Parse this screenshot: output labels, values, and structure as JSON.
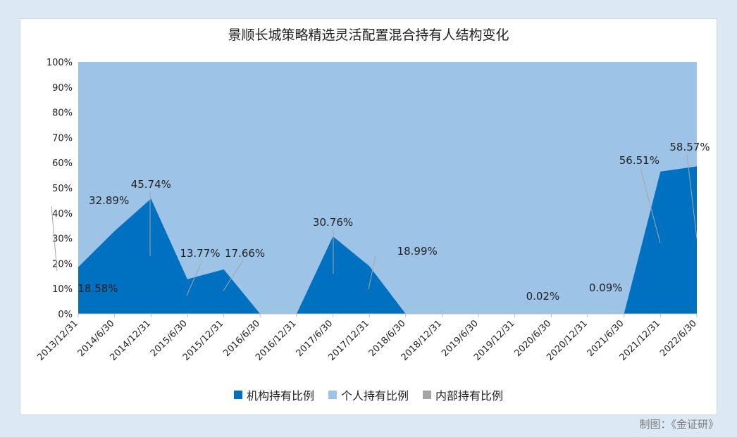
{
  "chart_data": {
    "type": "area",
    "title": "景顺长城策略精选灵活配置混合持有人结构变化",
    "categories": [
      "2013/12/31",
      "2014/6/30",
      "2014/12/31",
      "2015/6/30",
      "2015/12/31",
      "2016/6/30",
      "2016/12/31",
      "2017/6/30",
      "2017/12/31",
      "2018/6/30",
      "2018/12/31",
      "2019/6/30",
      "2019/12/31",
      "2020/6/30",
      "2020/12/31",
      "2021/6/30",
      "2021/12/31",
      "2022/6/30"
    ],
    "series": [
      {
        "name": "机构持有比例",
        "color": "#0070c0",
        "values": [
          18.58,
          32.89,
          45.74,
          13.77,
          17.66,
          0,
          0,
          30.76,
          18.99,
          0,
          0,
          0,
          0,
          0.02,
          0,
          0.09,
          56.51,
          58.57
        ]
      },
      {
        "name": "个人持有比例",
        "color": "#9dc3e6",
        "values": [
          81.42,
          67.11,
          54.26,
          86.23,
          82.34,
          100,
          100,
          69.24,
          81.01,
          100,
          100,
          100,
          100,
          99.98,
          100,
          99.91,
          43.49,
          41.43
        ]
      },
      {
        "name": "内部持有比例",
        "color": "#a5a5a5",
        "values": [
          0,
          0,
          0,
          0,
          0,
          0,
          0,
          0,
          0,
          0,
          0,
          0,
          0,
          0,
          0,
          0,
          0,
          0
        ]
      }
    ],
    "yticks": [
      "0%",
      "10%",
      "20%",
      "30%",
      "40%",
      "50%",
      "60%",
      "70%",
      "80%",
      "90%",
      "100%"
    ],
    "ylim": [
      0,
      100
    ],
    "data_labels": [
      "18.58%",
      "32.89%",
      "45.74%",
      "13.77%",
      "17.66%",
      "30.76%",
      "18.99%",
      "0.02%",
      "0.09%",
      "56.51%",
      "58.57%"
    ],
    "legend": "bottom"
  },
  "credit": "制图：《金证研》"
}
